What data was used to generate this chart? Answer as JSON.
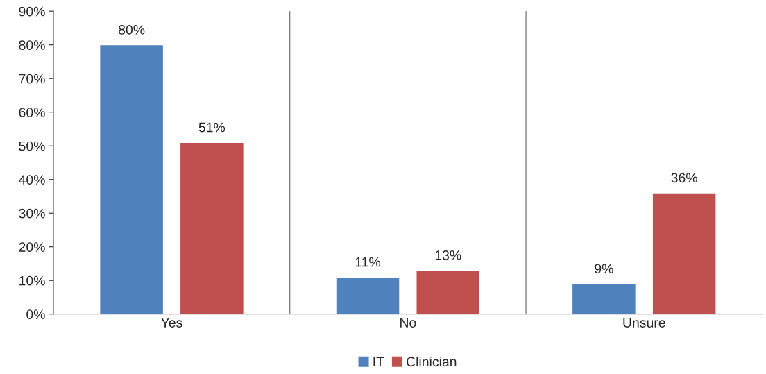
{
  "chart_data": {
    "type": "bar",
    "categories": [
      "Yes",
      "No",
      "Unsure"
    ],
    "series": [
      {
        "name": "IT",
        "color": "#4f81bd",
        "values": [
          80,
          11,
          9
        ],
        "value_labels": [
          "80%",
          "11%",
          "9%"
        ]
      },
      {
        "name": "Clinician",
        "color": "#c0504d",
        "values": [
          51,
          13,
          36
        ],
        "value_labels": [
          "51%",
          "13%",
          "36%"
        ]
      }
    ],
    "ylim": [
      0,
      90
    ],
    "yticks": [
      {
        "value": 0,
        "label": "0%"
      },
      {
        "value": 10,
        "label": "10%"
      },
      {
        "value": 20,
        "label": "20%"
      },
      {
        "value": 30,
        "label": "30%"
      },
      {
        "value": 40,
        "label": "40%"
      },
      {
        "value": 50,
        "label": "50%"
      },
      {
        "value": 60,
        "label": "60%"
      },
      {
        "value": 70,
        "label": "70%"
      },
      {
        "value": 80,
        "label": "80%"
      },
      {
        "value": 90,
        "label": "90%"
      }
    ],
    "grid": "x",
    "legend": "bottom"
  }
}
